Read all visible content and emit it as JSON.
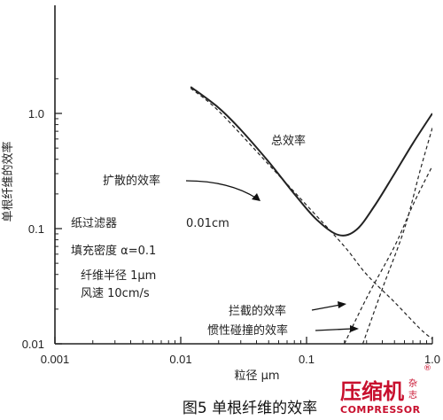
{
  "chart_data": {
    "type": "line",
    "title": "",
    "xlabel": "粒径 μm",
    "ylabel": "单根纤维的效率",
    "xscale": "log",
    "yscale": "log",
    "xlim": [
      0.001,
      1.0
    ],
    "ylim": [
      0.01,
      2.0
    ],
    "xticks": [
      {
        "value": 0.001,
        "label": "0.001"
      },
      {
        "value": 0.01,
        "label": "0.01"
      },
      {
        "value": 0.1,
        "label": "0.1"
      },
      {
        "value": 1.0,
        "label": "1.0"
      }
    ],
    "yticks": [
      {
        "value": 0.01,
        "label": "0.01"
      },
      {
        "value": 0.1,
        "label": "0.1"
      },
      {
        "value": 1.0,
        "label": "1.0"
      }
    ],
    "series": [
      {
        "name": "总效率",
        "style": "solid",
        "points": [
          [
            0.012,
            1.7
          ],
          [
            0.02,
            1.12
          ],
          [
            0.03,
            0.72
          ],
          [
            0.05,
            0.38
          ],
          [
            0.08,
            0.2
          ],
          [
            0.12,
            0.12
          ],
          [
            0.18,
            0.088
          ],
          [
            0.25,
            0.098
          ],
          [
            0.35,
            0.16
          ],
          [
            0.5,
            0.3
          ],
          [
            0.7,
            0.55
          ],
          [
            1.0,
            1.0
          ]
        ]
      },
      {
        "name": "扩散的效率",
        "style": "dashed",
        "points": [
          [
            0.012,
            1.65
          ],
          [
            0.02,
            1.05
          ],
          [
            0.05,
            0.36
          ],
          [
            0.1,
            0.16
          ],
          [
            0.2,
            0.07
          ],
          [
            0.3,
            0.04
          ],
          [
            0.5,
            0.023
          ],
          [
            0.8,
            0.0135
          ],
          [
            1.0,
            0.011
          ]
        ]
      },
      {
        "name": "拦截的效率",
        "style": "dashed",
        "points": [
          [
            0.2,
            0.01
          ],
          [
            0.3,
            0.025
          ],
          [
            0.5,
            0.07
          ],
          [
            0.7,
            0.16
          ],
          [
            1.0,
            0.35
          ]
        ]
      },
      {
        "name": "惯性碰撞的效率",
        "style": "dashed",
        "points": [
          [
            0.28,
            0.01
          ],
          [
            0.4,
            0.03
          ],
          [
            0.6,
            0.1
          ],
          [
            0.8,
            0.32
          ],
          [
            1.0,
            0.75
          ]
        ]
      }
    ],
    "annotations": {
      "total": "总效率",
      "diffusion": "扩散的效率",
      "interception": "拦截的效率",
      "inertial": "惯性碰撞的效率",
      "filter": "纸过滤器",
      "filter_size": "0.01cm",
      "packing_density": "填充密度 α=0.1",
      "fiber_radius": "纤维半径 1μm",
      "wind_speed": "风速 10cm/s"
    }
  },
  "caption": "图5 单根纤维的效率",
  "watermark": {
    "brand": "压缩机",
    "magazine_line1": "杂",
    "magazine_line2": "志",
    "english": "COMPRESSOR",
    "registered": "®"
  },
  "colors": {
    "line": "#222222",
    "watermark": "#c8102e"
  }
}
